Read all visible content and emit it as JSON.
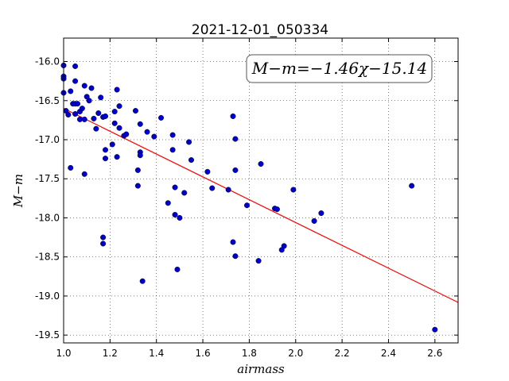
{
  "chart_data": {
    "type": "scatter",
    "title": "2021-12-01_050334",
    "xlabel": "airmass",
    "ylabel": "M−m",
    "annotation": "M−m=−1.46χ−15.14",
    "xlim": [
      1.0,
      2.7
    ],
    "ylim": [
      -15.7,
      -19.6
    ],
    "y_inverted": true,
    "grid": true,
    "x_ticks": [
      "1.0",
      "1.2",
      "1.4",
      "1.6",
      "1.8",
      "2.0",
      "2.2",
      "2.4",
      "2.6"
    ],
    "y_ticks": [
      "-16.0",
      "-16.5",
      "-17.0",
      "-17.5",
      "-18.0",
      "-18.5",
      "-19.0",
      "-19.5"
    ],
    "x_tick_values": [
      1.0,
      1.2,
      1.4,
      1.6,
      1.8,
      2.0,
      2.2,
      2.4,
      2.6
    ],
    "y_tick_values": [
      -16.0,
      -16.5,
      -17.0,
      -17.5,
      -18.0,
      -18.5,
      -19.0,
      -19.5
    ],
    "fit_line": {
      "slope": -1.46,
      "intercept": -15.14,
      "color": "#ff0000"
    },
    "point_color": "#0000cc",
    "points": [
      [
        1.0,
        -16.05
      ],
      [
        1.0,
        -16.19
      ],
      [
        1.0,
        -16.22
      ],
      [
        1.0,
        -16.4
      ],
      [
        1.01,
        -16.63
      ],
      [
        1.02,
        -16.68
      ],
      [
        1.03,
        -16.38
      ],
      [
        1.03,
        -17.36
      ],
      [
        1.04,
        -16.54
      ],
      [
        1.05,
        -16.06
      ],
      [
        1.05,
        -16.25
      ],
      [
        1.05,
        -16.54
      ],
      [
        1.05,
        -16.67
      ],
      [
        1.06,
        -16.54
      ],
      [
        1.07,
        -16.74
      ],
      [
        1.07,
        -16.64
      ],
      [
        1.08,
        -16.6
      ],
      [
        1.09,
        -16.31
      ],
      [
        1.09,
        -16.74
      ],
      [
        1.1,
        -16.45
      ],
      [
        1.09,
        -17.44
      ],
      [
        1.11,
        -16.5
      ],
      [
        1.12,
        -16.34
      ],
      [
        1.13,
        -16.73
      ],
      [
        1.14,
        -16.86
      ],
      [
        1.15,
        -16.66
      ],
      [
        1.16,
        -16.46
      ],
      [
        1.17,
        -16.71
      ],
      [
        1.17,
        -18.25
      ],
      [
        1.17,
        -18.33
      ],
      [
        1.18,
        -16.7
      ],
      [
        1.18,
        -17.13
      ],
      [
        1.18,
        -17.24
      ],
      [
        1.21,
        -17.06
      ],
      [
        1.22,
        -16.64
      ],
      [
        1.22,
        -16.79
      ],
      [
        1.23,
        -16.36
      ],
      [
        1.23,
        -17.22
      ],
      [
        1.24,
        -16.57
      ],
      [
        1.24,
        -16.85
      ],
      [
        1.26,
        -16.95
      ],
      [
        1.27,
        -16.93
      ],
      [
        1.31,
        -16.63
      ],
      [
        1.32,
        -17.59
      ],
      [
        1.32,
        -17.39
      ],
      [
        1.33,
        -16.8
      ],
      [
        1.33,
        -17.16
      ],
      [
        1.33,
        -17.2
      ],
      [
        1.34,
        -18.81
      ],
      [
        1.36,
        -16.9
      ],
      [
        1.39,
        -16.96
      ],
      [
        1.42,
        -16.72
      ],
      [
        1.45,
        -17.81
      ],
      [
        1.47,
        -16.94
      ],
      [
        1.47,
        -17.13
      ],
      [
        1.48,
        -17.61
      ],
      [
        1.48,
        -17.96
      ],
      [
        1.49,
        -18.66
      ],
      [
        1.5,
        -18.0
      ],
      [
        1.52,
        -17.68
      ],
      [
        1.54,
        -17.03
      ],
      [
        1.55,
        -17.26
      ],
      [
        1.62,
        -17.41
      ],
      [
        1.64,
        -17.62
      ],
      [
        1.71,
        -17.64
      ],
      [
        1.73,
        -16.7
      ],
      [
        1.73,
        -18.31
      ],
      [
        1.74,
        -16.99
      ],
      [
        1.74,
        -17.39
      ],
      [
        1.74,
        -18.49
      ],
      [
        1.79,
        -17.84
      ],
      [
        1.84,
        -18.55
      ],
      [
        1.85,
        -17.31
      ],
      [
        1.91,
        -17.88
      ],
      [
        1.92,
        -17.89
      ],
      [
        1.94,
        -18.41
      ],
      [
        1.95,
        -18.36
      ],
      [
        1.99,
        -17.64
      ],
      [
        2.08,
        -18.04
      ],
      [
        2.11,
        -17.94
      ],
      [
        2.5,
        -17.59
      ],
      [
        2.6,
        -19.43
      ]
    ]
  }
}
